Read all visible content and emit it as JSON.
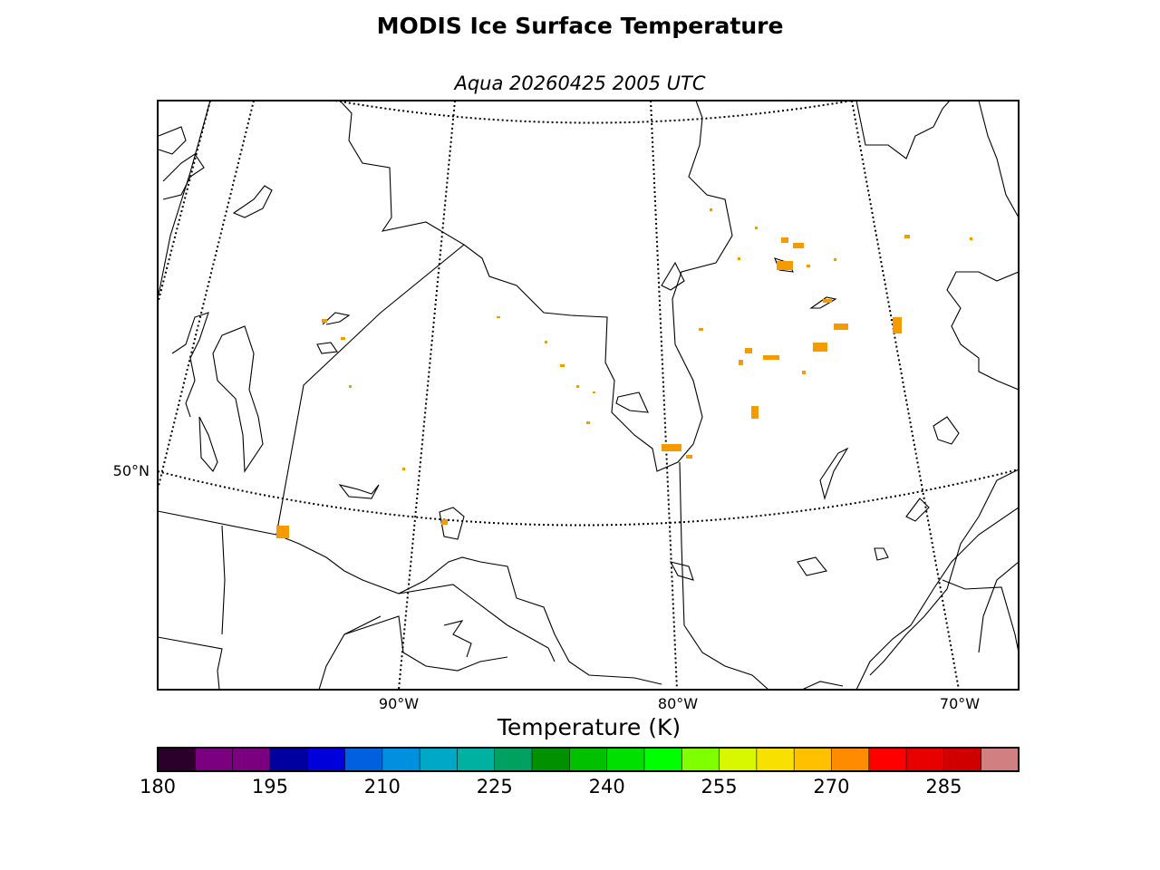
{
  "title": "MODIS Ice Surface Temperature",
  "subtitle": "Aqua 20260425 2005 UTC",
  "map": {
    "graticule": {
      "lat_labels": [
        "50°N"
      ],
      "lon_labels": [
        "90°W",
        "80°W",
        "70°W"
      ]
    },
    "ice_color": "#f59b00"
  },
  "colorbar": {
    "label": "Temperature (K)",
    "min": 180,
    "max": 295,
    "step": 5,
    "tick_labels": [
      "180",
      "195",
      "210",
      "225",
      "240",
      "255",
      "270",
      "285"
    ],
    "colors": [
      "#2b002b",
      "#7a0080",
      "#7a0080",
      "#0000a0",
      "#0000dd",
      "#0060e0",
      "#0090e0",
      "#00a8c8",
      "#00b0a0",
      "#00a060",
      "#009000",
      "#00c000",
      "#00e000",
      "#00ff00",
      "#80ff00",
      "#d8f800",
      "#f8e000",
      "#ffc000",
      "#ff8c00",
      "#ff0000",
      "#e80000",
      "#d00000",
      "#d08080"
    ]
  }
}
